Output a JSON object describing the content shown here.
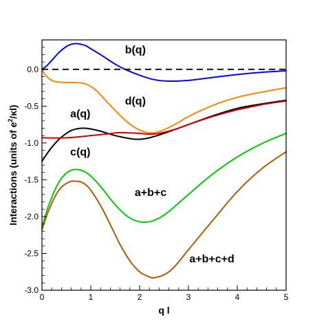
{
  "chart_data": {
    "type": "line",
    "xlabel": "q l",
    "ylabel": {
      "prefix": "Interactions (units of e",
      "sup": "2",
      "suffix": "/κl)"
    },
    "xlim": [
      0,
      5
    ],
    "ylim": [
      -3.0,
      0.4
    ],
    "xticks": [
      0,
      1,
      2,
      3,
      4,
      5
    ],
    "xtick_labels": [
      "0",
      "1",
      "2",
      "3",
      "4",
      "5"
    ],
    "yticks": [
      0.0,
      -0.5,
      -1.0,
      -1.5,
      -2.0,
      -2.5,
      -3.0
    ],
    "ytick_labels": [
      "0.0",
      "-0.5",
      "-1.0",
      "-1.5",
      "-2.0",
      "-2.5",
      "-3.0"
    ],
    "grid": false,
    "legend": "none",
    "reference_line": {
      "y": 0.0,
      "style": "dashed",
      "color": "#000000"
    },
    "series": [
      {
        "key": "a",
        "label": "a(q)",
        "color": "#000000",
        "x": [
          0,
          0.1,
          0.2,
          0.35,
          0.5,
          0.6,
          0.7,
          0.8,
          0.9,
          1.0,
          1.2,
          1.5,
          1.8,
          2.0,
          2.2,
          2.5,
          3.0,
          3.5,
          4.0,
          4.5,
          5.0
        ],
        "y": [
          -1.25,
          -1.15,
          -1.06,
          -0.95,
          -0.87,
          -0.83,
          -0.81,
          -0.8,
          -0.8,
          -0.81,
          -0.84,
          -0.9,
          -0.94,
          -0.95,
          -0.93,
          -0.87,
          -0.75,
          -0.63,
          -0.53,
          -0.47,
          -0.42
        ]
      },
      {
        "key": "b",
        "label": "b(q)",
        "color": "#0000ff",
        "x": [
          0,
          0.1,
          0.2,
          0.35,
          0.5,
          0.6,
          0.7,
          0.8,
          0.9,
          1.0,
          1.2,
          1.5,
          1.7,
          2.0,
          2.3,
          2.6,
          3.0,
          3.5,
          4.0,
          4.5,
          5.0
        ],
        "y": [
          0.0,
          0.05,
          0.12,
          0.23,
          0.31,
          0.34,
          0.35,
          0.34,
          0.32,
          0.28,
          0.2,
          0.07,
          0.0,
          -0.08,
          -0.14,
          -0.16,
          -0.15,
          -0.11,
          -0.07,
          -0.04,
          -0.02
        ]
      },
      {
        "key": "c",
        "label": "c(q)",
        "color": "#cc0000",
        "x": [
          0,
          0.5,
          1.0,
          1.3,
          1.6,
          2.0,
          2.2,
          2.4,
          2.7,
          3.0,
          3.5,
          4.0,
          4.5,
          5.0
        ],
        "y": [
          -0.93,
          -0.93,
          -0.9,
          -0.88,
          -0.86,
          -0.87,
          -0.88,
          -0.87,
          -0.82,
          -0.75,
          -0.64,
          -0.55,
          -0.48,
          -0.43
        ]
      },
      {
        "key": "d",
        "label": "d(q)",
        "color": "#ff8800",
        "x": [
          0,
          0.05,
          0.1,
          0.2,
          0.3,
          0.5,
          0.7,
          0.9,
          1.1,
          1.3,
          1.5,
          1.7,
          1.9,
          2.1,
          2.3,
          2.5,
          2.8,
          3.0,
          3.5,
          4.0,
          4.5,
          5.0
        ],
        "y": [
          0.0,
          -0.06,
          -0.1,
          -0.15,
          -0.17,
          -0.18,
          -0.18,
          -0.2,
          -0.28,
          -0.42,
          -0.56,
          -0.69,
          -0.79,
          -0.85,
          -0.86,
          -0.82,
          -0.72,
          -0.64,
          -0.49,
          -0.38,
          -0.31,
          -0.25
        ]
      },
      {
        "key": "abc",
        "label": "a+b+c",
        "color": "#00cc00",
        "x": [
          0,
          0.1,
          0.2,
          0.3,
          0.4,
          0.5,
          0.6,
          0.7,
          0.8,
          0.9,
          1.0,
          1.2,
          1.4,
          1.6,
          1.8,
          2.0,
          2.2,
          2.4,
          2.6,
          3.0,
          3.5,
          4.0,
          4.5,
          5.0
        ],
        "y": [
          -2.15,
          -1.92,
          -1.74,
          -1.59,
          -1.48,
          -1.41,
          -1.37,
          -1.36,
          -1.37,
          -1.4,
          -1.45,
          -1.59,
          -1.76,
          -1.91,
          -2.02,
          -2.07,
          -2.07,
          -2.02,
          -1.93,
          -1.7,
          -1.42,
          -1.19,
          -1.01,
          -0.87
        ]
      },
      {
        "key": "abcd",
        "label": "a+b+c+d",
        "color": "#b35900",
        "x": [
          0,
          0.1,
          0.2,
          0.3,
          0.4,
          0.5,
          0.6,
          0.7,
          0.8,
          0.9,
          1.0,
          1.2,
          1.4,
          1.6,
          1.8,
          2.0,
          2.2,
          2.3,
          2.5,
          2.7,
          3.0,
          3.5,
          4.0,
          4.5,
          5.0
        ],
        "y": [
          -2.18,
          -1.98,
          -1.82,
          -1.69,
          -1.6,
          -1.55,
          -1.52,
          -1.52,
          -1.53,
          -1.57,
          -1.64,
          -1.85,
          -2.11,
          -2.38,
          -2.6,
          -2.75,
          -2.82,
          -2.83,
          -2.79,
          -2.69,
          -2.45,
          -2.05,
          -1.66,
          -1.35,
          -1.12
        ]
      }
    ],
    "annotations": [
      {
        "text": "b(q)",
        "x": 1.7,
        "y": 0.22
      },
      {
        "text": "d(q)",
        "x": 1.7,
        "y": -0.48
      },
      {
        "text": "a(q)",
        "x": 0.58,
        "y": -0.65
      },
      {
        "text": "c(q)",
        "x": 0.58,
        "y": -1.17
      },
      {
        "text": "a+b+c",
        "x": 1.9,
        "y": -1.72
      },
      {
        "text": "a+b+c+d",
        "x": 3.02,
        "y": -2.62
      }
    ]
  }
}
